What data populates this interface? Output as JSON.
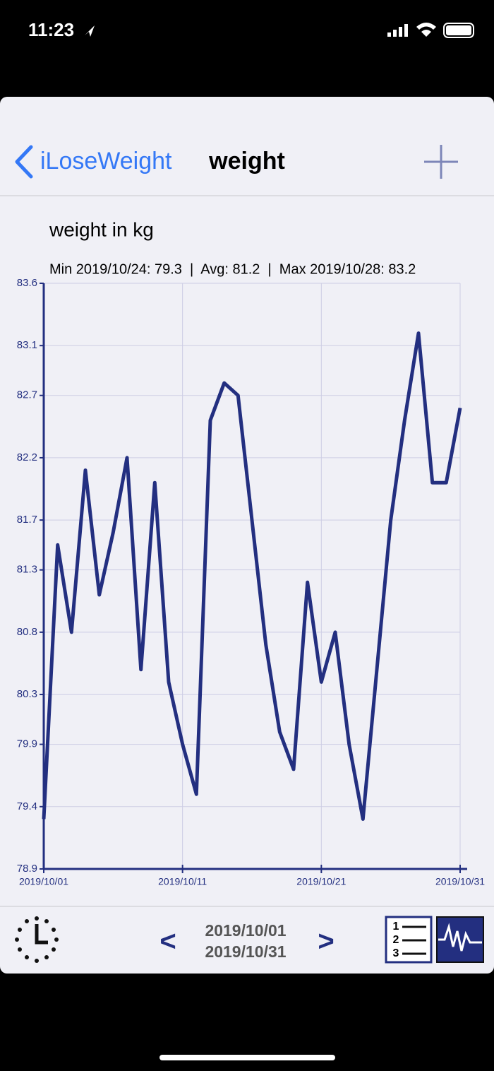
{
  "status_bar": {
    "time": "11:23"
  },
  "nav_bar": {
    "back": "iLoseWeight",
    "title": "weight"
  },
  "chart_data": {
    "type": "line",
    "title": "weight in kg",
    "subtitle": "Min 2019/10/24: 79.3  |  Avg: 81.2  |  Max 2019/10/28: 83.2",
    "x": [
      "2019/10/01",
      "2019/10/02",
      "2019/10/03",
      "2019/10/04",
      "2019/10/05",
      "2019/10/06",
      "2019/10/07",
      "2019/10/08",
      "2019/10/09",
      "2019/10/10",
      "2019/10/11",
      "2019/10/12",
      "2019/10/13",
      "2019/10/14",
      "2019/10/15",
      "2019/10/16",
      "2019/10/17",
      "2019/10/18",
      "2019/10/19",
      "2019/10/20",
      "2019/10/21",
      "2019/10/22",
      "2019/10/23",
      "2019/10/24",
      "2019/10/25",
      "2019/10/26",
      "2019/10/27",
      "2019/10/28",
      "2019/10/29",
      "2019/10/30",
      "2019/10/31"
    ],
    "values": [
      79.3,
      81.5,
      80.8,
      82.1,
      81.1,
      81.6,
      82.2,
      80.5,
      82.0,
      80.4,
      79.9,
      79.5,
      82.5,
      82.8,
      82.7,
      81.7,
      80.7,
      80.0,
      79.7,
      81.2,
      80.4,
      80.8,
      79.9,
      79.3,
      80.5,
      81.7,
      82.5,
      83.2,
      82.0,
      82.0,
      82.6
    ],
    "color": "#232f80",
    "xlim": [
      "2019/10/01",
      "2019/10/31"
    ],
    "xticks": [
      "2019/10/01",
      "2019/10/11",
      "2019/10/21",
      "2019/10/31"
    ],
    "ylim": [
      78.9,
      83.6
    ],
    "yticks": [
      78.9,
      79.4,
      79.9,
      80.3,
      80.8,
      81.3,
      81.7,
      82.2,
      82.7,
      83.1,
      83.6
    ],
    "grid": true
  },
  "bottom_bar": {
    "range_start": "2019/10/01",
    "range_end": "2019/10/31"
  }
}
